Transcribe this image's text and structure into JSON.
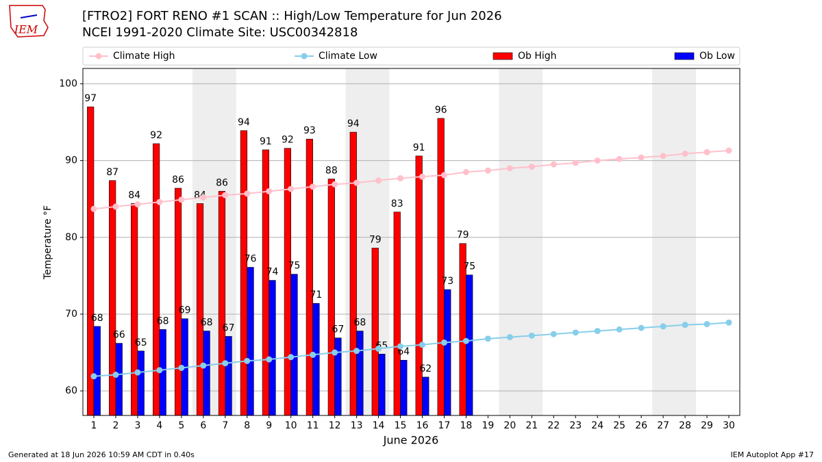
{
  "logo_text": "IEM",
  "chart_data": {
    "type": "bar",
    "title": "[FTRO2] FORT RENO #1 SCAN :: High/Low Temperature for Jun 2026",
    "subtitle": "NCEI 1991-2020 Climate Site: USC00342818",
    "xlabel": "June 2026",
    "ylabel": "Temperature °F",
    "x": [
      1,
      2,
      3,
      4,
      5,
      6,
      7,
      8,
      9,
      10,
      11,
      12,
      13,
      14,
      15,
      16,
      17,
      18,
      19,
      20,
      21,
      22,
      23,
      24,
      25,
      26,
      27,
      28,
      29,
      30
    ],
    "xlim": [
      0.5,
      30.5
    ],
    "xticks": [
      1,
      2,
      3,
      4,
      5,
      6,
      7,
      8,
      9,
      10,
      11,
      12,
      13,
      14,
      15,
      16,
      17,
      18,
      19,
      20,
      21,
      22,
      23,
      24,
      25,
      26,
      27,
      28,
      29,
      30
    ],
    "ylim": [
      56.8,
      102
    ],
    "yticks": [
      60,
      70,
      80,
      90,
      100
    ],
    "grid": true,
    "weekend_bands": [
      [
        5.5,
        7.5
      ],
      [
        12.5,
        14.5
      ],
      [
        19.5,
        21.5
      ],
      [
        26.5,
        28.5
      ]
    ],
    "series": [
      {
        "name": "Climate High",
        "type": "line",
        "color": "#ffc0cb",
        "values": [
          83.7,
          84.0,
          84.3,
          84.6,
          84.9,
          85.2,
          85.5,
          85.7,
          86.0,
          86.3,
          86.6,
          86.9,
          87.1,
          87.4,
          87.7,
          87.9,
          88.1,
          88.5,
          88.7,
          89.0,
          89.2,
          89.5,
          89.7,
          90.0,
          90.2,
          90.4,
          90.6,
          90.9,
          91.1,
          91.3
        ]
      },
      {
        "name": "Climate Low",
        "type": "line",
        "color": "#87ceeb",
        "values": [
          61.9,
          62.1,
          62.4,
          62.7,
          63.0,
          63.3,
          63.6,
          63.9,
          64.1,
          64.4,
          64.7,
          65.0,
          65.2,
          65.5,
          65.8,
          66.0,
          66.3,
          66.5,
          66.8,
          67.0,
          67.2,
          67.4,
          67.6,
          67.8,
          68.0,
          68.2,
          68.4,
          68.6,
          68.7,
          68.9
        ]
      },
      {
        "name": "Ob High",
        "type": "bar",
        "color": "#ff0000",
        "values": [
          97.0,
          87.4,
          84.4,
          92.2,
          86.4,
          84.4,
          86.0,
          93.9,
          91.4,
          91.6,
          92.8,
          87.6,
          93.7,
          78.6,
          83.3,
          90.6,
          95.5,
          79.2,
          null,
          null,
          null,
          null,
          null,
          null,
          null,
          null,
          null,
          null,
          null,
          null
        ],
        "value_labels": [
          "97",
          "87",
          "84",
          "92",
          "86",
          "84",
          "86",
          "94",
          "91",
          "92",
          "93",
          "88",
          "94",
          "79",
          "83",
          "91",
          "96",
          "79",
          null,
          null,
          null,
          null,
          null,
          null,
          null,
          null,
          null,
          null,
          null,
          null
        ]
      },
      {
        "name": "Ob Low",
        "type": "bar",
        "color": "#0000ff",
        "values": [
          68.4,
          66.2,
          65.2,
          68.0,
          69.4,
          67.8,
          67.1,
          76.1,
          74.4,
          75.2,
          71.4,
          66.9,
          67.8,
          64.8,
          64.0,
          61.8,
          73.2,
          75.1,
          null,
          null,
          null,
          null,
          null,
          null,
          null,
          null,
          null,
          null,
          null,
          null
        ],
        "value_labels": [
          "68",
          "66",
          "65",
          "68",
          "69",
          "68",
          "67",
          "76",
          "74",
          "75",
          "71",
          "67",
          "68",
          "65",
          "64",
          "62",
          "73",
          "75",
          null,
          null,
          null,
          null,
          null,
          null,
          null,
          null,
          null,
          null,
          null,
          null
        ]
      }
    ],
    "footer_left": "Generated at 18 Jun 2026 10:59 AM CDT in 0.40s",
    "footer_right": "IEM Autoplot App #17"
  }
}
